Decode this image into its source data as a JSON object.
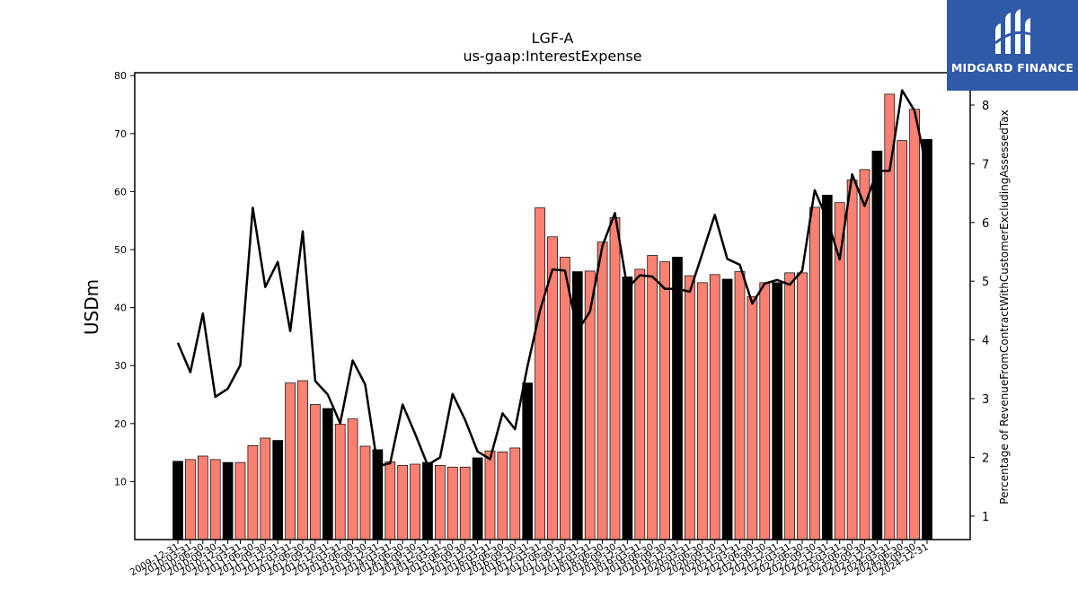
{
  "chart_data": {
    "type": "bar+line",
    "title": "LGF-A",
    "subtitle": "us-gaap:InterestExpense",
    "ylabel": "USDm",
    "y2label": "Percentage of RevenueFromContractWithCustomerExcludingAssessedTax",
    "ylim": [
      0,
      80.5
    ],
    "y2lim": [
      0.6,
      8.55
    ],
    "yticks": [
      10,
      20,
      30,
      40,
      50,
      60,
      70,
      80
    ],
    "y2ticks": [
      1,
      2,
      3,
      4,
      5,
      6,
      7,
      8
    ],
    "grid": false,
    "colors": {
      "quarterly_bar": "#fa8072",
      "annual_bar": "#000000",
      "line": "#000000",
      "bar_edge": "#000000"
    },
    "categories": [
      "2009-12-31",
      "2010-03-31",
      "2010-06-30",
      "2010-09-30",
      "2010-12-31",
      "2011-03-31",
      "2011-06-30",
      "2011-09-30",
      "2011-12-31",
      "2012-03-31",
      "2012-06-30",
      "2012-09-30",
      "2012-12-31",
      "2013-03-31",
      "2013-06-30",
      "2013-09-30",
      "2013-12-31",
      "2014-03-31",
      "2014-06-30",
      "2014-09-30",
      "2014-12-31",
      "2015-03-31",
      "2015-06-30",
      "2015-09-30",
      "2015-12-31",
      "2016-03-31",
      "2016-06-30",
      "2016-09-30",
      "2016-12-31",
      "2017-03-31",
      "2017-06-30",
      "2017-09-30",
      "2017-12-31",
      "2018-03-31",
      "2018-06-30",
      "2018-09-30",
      "2018-12-31",
      "2019-03-31",
      "2019-06-30",
      "2019-09-30",
      "2019-12-31",
      "2020-03-31",
      "2020-06-30",
      "2020-09-30",
      "2020-12-31",
      "2021-03-31",
      "2021-06-30",
      "2021-09-30",
      "2021-12-31",
      "2022-03-31",
      "2022-06-30",
      "2022-09-30",
      "2022-12-31",
      "2023-03-31",
      "2023-06-30",
      "2023-09-30",
      "2023-12-31",
      "2024-03-31",
      "2024-06-30",
      "2024-09-30",
      "2024-12-31"
    ],
    "tick_labels": [
      "2009-12-31",
      "2010-03-31",
      "2010-06-30",
      "2010-09-30",
      "2010-12-31",
      "2011-03-31",
      "2011-06-30",
      "2011-09-30",
      "2011-12-31",
      "2012-03-31",
      "2012-06-30",
      "2012-09-30",
      "2012-12-31",
      "2013-03-31",
      "2013-06-30",
      "2013-09-30",
      "2013-12-31",
      "2014-03-31",
      "2014-06-30",
      "2014-09-30",
      "2014-12-31",
      "2015-03-31",
      "2015-06-30",
      "2015-09-30",
      "2015-12-31",
      "2016-03-31",
      "2016-06-30",
      "2016-09-30",
      "2016-12-31",
      "2017-03-31",
      "2017-06-30",
      "2017-09-30",
      "2017-12-31",
      "2018-03-31",
      "2018-06-30",
      "2018-09-30",
      "2018-12-31",
      "2019-03-31",
      "2019-06-30",
      "2019-09-30",
      "2019-12-31",
      "2020-03-31",
      "2020-06-30",
      "2020-09-30",
      "2020-12-31",
      "2021-03-31",
      "2021-06-30",
      "2021-09-30",
      "2021-12-31",
      "2022-03-31",
      "2022-06-30",
      "2022-09-30",
      "2022-12-31",
      "2023-03-31",
      "2023-06-30",
      "2023-09-30",
      "2023-12-31",
      "2024-03-31",
      "2024-06-30",
      "2024-09-30",
      "2024-12-31"
    ],
    "series": [
      {
        "type": "bar",
        "values": [
          13.5,
          13.8,
          14.4,
          13.8,
          13.3,
          13.3,
          16.2,
          17.5,
          17.1,
          27.0,
          27.4,
          23.3,
          22.6,
          19.9,
          20.8,
          16.1,
          15.5,
          13.4,
          12.8,
          13.0,
          13.3,
          12.8,
          12.5,
          12.5,
          14.1,
          15.3,
          15.1,
          15.8,
          27.0,
          57.2,
          52.2,
          48.7,
          46.2,
          46.3,
          51.3,
          55.5,
          45.3,
          46.6,
          49.0,
          47.9,
          48.7,
          45.5,
          44.3,
          45.7,
          44.9,
          46.2,
          41.9,
          44.3,
          44.3,
          46.0,
          46.0,
          57.3,
          59.4,
          58.1,
          62.0,
          63.8,
          67.0,
          76.8,
          68.8,
          74.2,
          69.0
        ],
        "annual": [
          true,
          false,
          false,
          false,
          true,
          false,
          false,
          false,
          true,
          false,
          false,
          false,
          true,
          false,
          false,
          false,
          true,
          false,
          false,
          false,
          true,
          false,
          false,
          false,
          true,
          false,
          false,
          false,
          true,
          false,
          false,
          false,
          true,
          false,
          false,
          false,
          true,
          false,
          false,
          false,
          true,
          false,
          false,
          false,
          true,
          false,
          false,
          false,
          true,
          false,
          false,
          false,
          true,
          false,
          false,
          false,
          true,
          false,
          false,
          false,
          true
        ]
      },
      {
        "type": "line",
        "axis": "right",
        "values": [
          3.95,
          3.45,
          4.45,
          3.03,
          3.17,
          3.57,
          6.25,
          4.9,
          5.33,
          4.15,
          5.85,
          3.3,
          3.07,
          2.58,
          3.65,
          3.24,
          1.85,
          1.9,
          2.9,
          2.4,
          1.87,
          2.0,
          3.08,
          2.64,
          2.1,
          1.97,
          2.75,
          2.48,
          3.55,
          4.5,
          5.2,
          5.18,
          4.15,
          4.48,
          5.6,
          6.16,
          4.88,
          5.1,
          5.08,
          4.87,
          4.87,
          4.82,
          5.47,
          6.13,
          5.38,
          5.28,
          4.62,
          4.96,
          5.02,
          4.94,
          5.18,
          6.55,
          6.05,
          5.37,
          6.82,
          6.28,
          6.88,
          6.88,
          8.25,
          7.9,
          6.88
        ]
      }
    ]
  },
  "logo": {
    "text": "MIDGARD FINANCE"
  }
}
